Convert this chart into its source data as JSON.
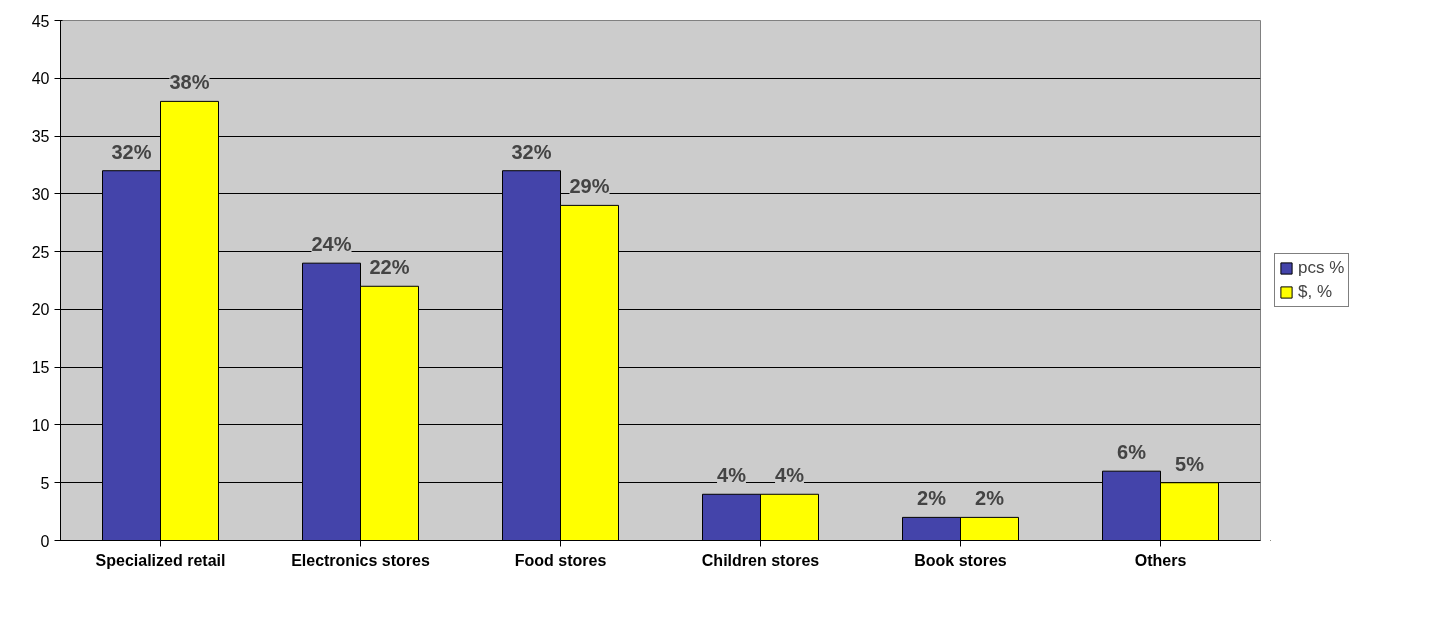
{
  "chart_data": {
    "type": "bar",
    "categories": [
      "Specialized retail",
      "Electronics stores",
      "Food stores",
      "Children stores",
      "Book stores",
      "Others"
    ],
    "series": [
      {
        "name": "pcs %",
        "color": "#4444aa",
        "values": [
          32,
          24,
          32,
          4,
          2,
          6
        ],
        "value_labels": [
          "32%",
          "24%",
          "32%",
          "4%",
          "2%",
          "6%"
        ]
      },
      {
        "name": "$, %",
        "color": "#ffff00",
        "values": [
          38,
          22,
          29,
          4,
          2,
          5
        ],
        "value_labels": [
          "38%",
          "22%",
          "29%",
          "4%",
          "2%",
          "5%"
        ]
      }
    ],
    "ylim": [
      0,
      45
    ],
    "yticks": [
      0,
      5,
      10,
      15,
      20,
      25,
      30,
      35,
      40,
      45
    ],
    "grid": "y",
    "legend": "right"
  }
}
